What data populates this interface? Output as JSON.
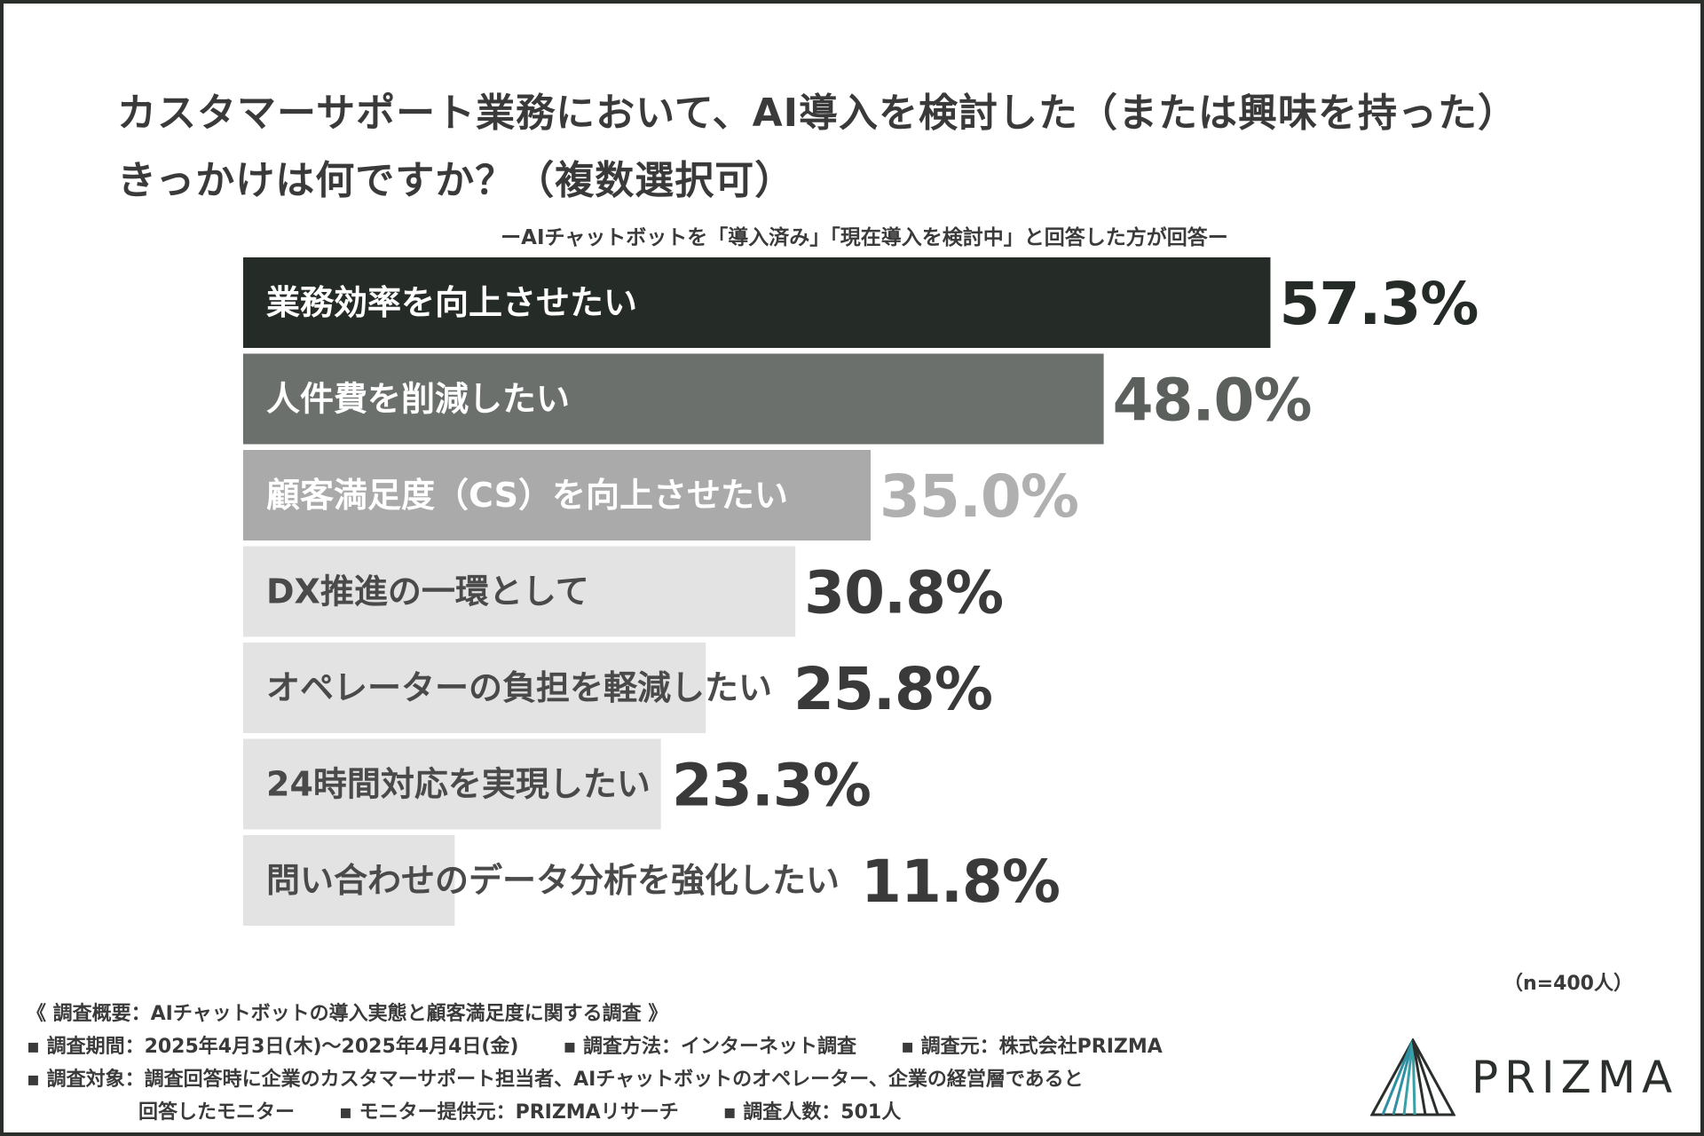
{
  "title": {
    "line1": "カスタマーサポート業務において、AI導入を検討した（または興味を持った）",
    "line2": "きっかけは何ですか？（複数選択可）"
  },
  "subtitle": "ーAIチャットボットを「導入済み」「現在導入を検討中」と回答した方が回答ー",
  "chart_data": {
    "type": "bar",
    "orientation": "horizontal",
    "categories": [
      "業務効率を向上させたい",
      "人件費を削減したい",
      "顧客満足度（CS）を向上させたい",
      "DX推進の一環として",
      "オペレーターの負担を軽減したい",
      "24時間対応を実現したい",
      "問い合わせのデータ分析を強化したい"
    ],
    "values": [
      57.3,
      48.0,
      35.0,
      30.8,
      25.8,
      23.3,
      11.8
    ],
    "value_labels": [
      "57.3%",
      "48.0%",
      "35.0%",
      "30.8%",
      "25.8%",
      "23.3%",
      "11.8%"
    ],
    "bar_colors": [
      "#252b26",
      "#6b706c",
      "#aaaaaa",
      "#e3e3e3",
      "#e3e3e3",
      "#e3e3e3",
      "#e3e3e3"
    ],
    "label_colors": [
      "#ffffff",
      "#ffffff",
      "#ffffff",
      "#4a4a4a",
      "#4a4a4a",
      "#4a4a4a",
      "#4a4a4a"
    ],
    "value_colors": [
      "#252b26",
      "#5b605c",
      "#b0b0b0",
      "#3a3a3a",
      "#3a3a3a",
      "#3a3a3a",
      "#3a3a3a"
    ],
    "xlim": [
      0,
      100
    ],
    "grid": false
  },
  "sample": "（n=400人）",
  "notes": {
    "overview": "《 調査概要：AIチャットボットの導入実態と顧客満足度に関する調査 》",
    "period": "▪ 調査期間：2025年4月3日(木)～2025年4月4日(金)",
    "method": "▪ 調査方法：インターネット調査",
    "source": "▪ 調査元：株式会社PRIZMA",
    "target": "▪ 調査対象：調査回答時に企業のカスタマーサポート担当者、AIチャットボットのオペレーター、企業の経営層であると",
    "target_cont": "回答したモニター",
    "provider": "▪ モニター提供元：PRIZMAリサーチ",
    "count": "▪ 調査人数：501人"
  },
  "logo": {
    "text": "PRIZMA",
    "color_dark": "#2a2f2b",
    "color_accent": "#2f8fa3"
  }
}
